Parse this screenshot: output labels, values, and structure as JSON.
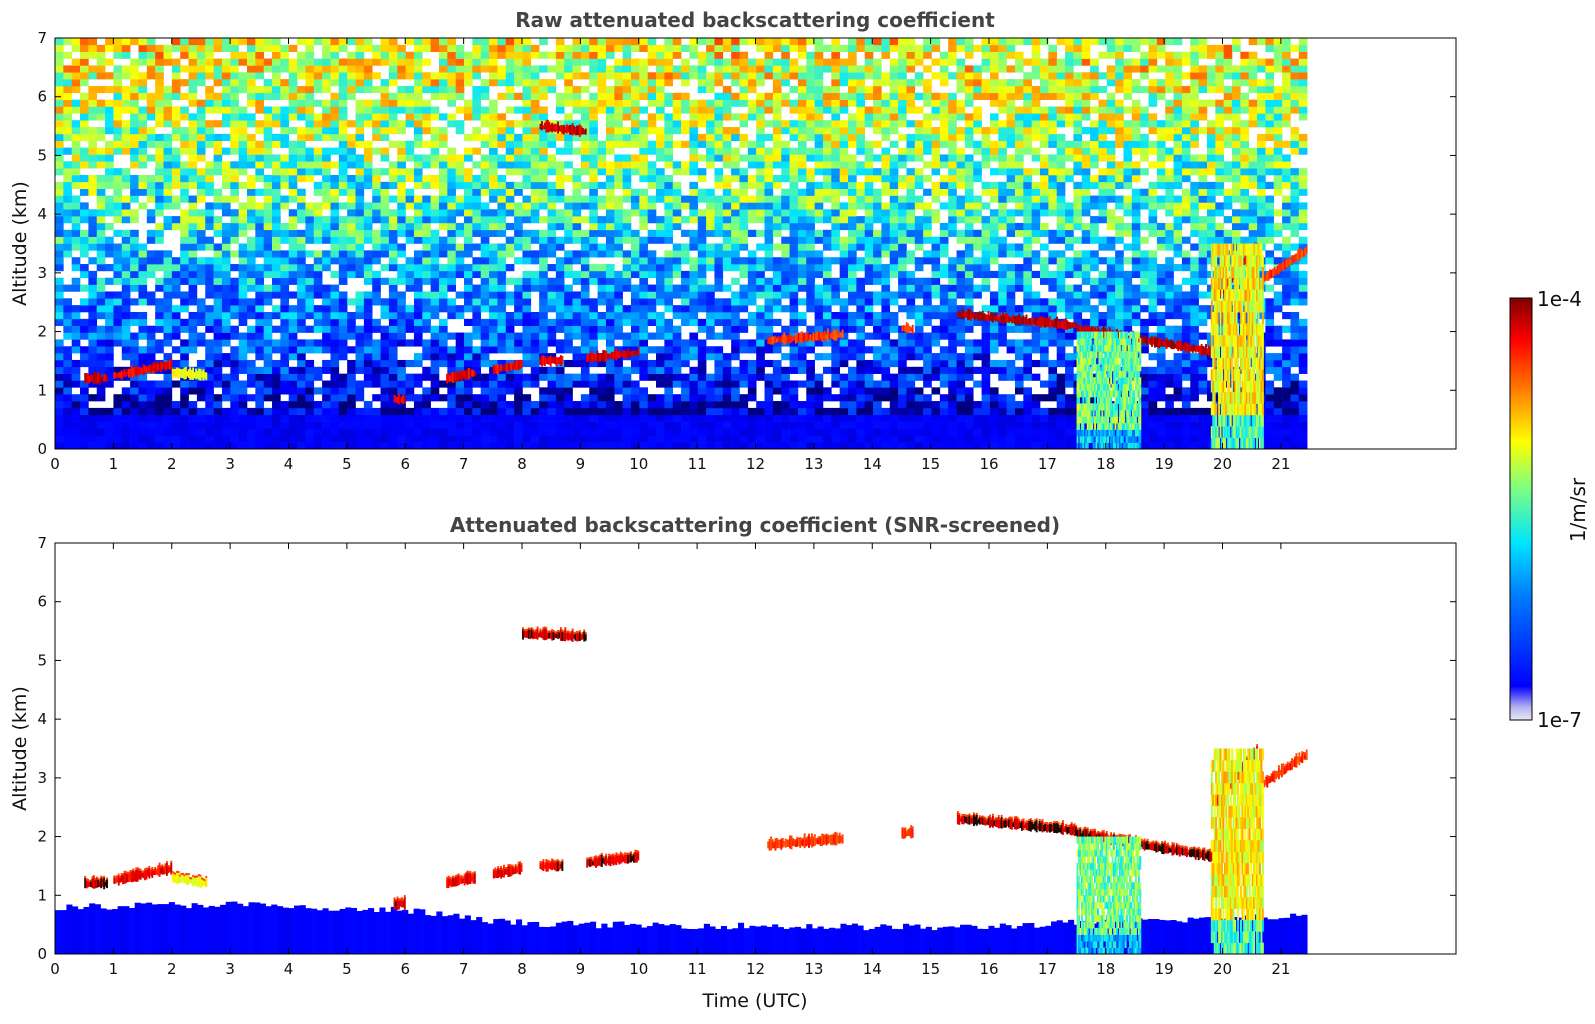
{
  "chart_data": [
    {
      "type": "heatmap",
      "title": "Raw attenuated backscattering coefficient",
      "xlabel": "",
      "ylabel": "Altitude (km)",
      "xlim": [
        0,
        24
      ],
      "ylim": [
        0,
        7
      ],
      "x_ticks": [
        "0",
        "1",
        "2",
        "3",
        "4",
        "5",
        "6",
        "7",
        "8",
        "9",
        "10",
        "11",
        "12",
        "13",
        "14",
        "15",
        "16",
        "17",
        "18",
        "19",
        "20",
        "21"
      ],
      "y_ticks": [
        "0",
        "1",
        "2",
        "3",
        "4",
        "5",
        "6",
        "7"
      ],
      "data_end_time": 21.45,
      "noise_profile": [
        {
          "z": 0.0,
          "v": 0.02
        },
        {
          "z": 0.6,
          "v": 0.05
        },
        {
          "z": 1.2,
          "v": 0.18
        },
        {
          "z": 2.5,
          "v": 0.32
        },
        {
          "z": 4.0,
          "v": 0.48
        },
        {
          "z": 5.5,
          "v": 0.6
        },
        {
          "z": 7.0,
          "v": 0.68
        }
      ],
      "features": [
        {
          "kind": "cloud",
          "t": [
            0.5,
            0.9
          ],
          "z": [
            1.2,
            1.2
          ],
          "v": 0.97
        },
        {
          "kind": "cloud",
          "t": [
            1.0,
            2.0
          ],
          "z": [
            1.25,
            1.45
          ],
          "v": 0.95
        },
        {
          "kind": "cloud",
          "t": [
            2.0,
            2.6
          ],
          "z": [
            1.3,
            1.25
          ],
          "v": 0.7
        },
        {
          "kind": "cloud",
          "t": [
            5.8,
            6.0
          ],
          "z": [
            0.85,
            0.85
          ],
          "v": 0.96
        },
        {
          "kind": "cloud",
          "t": [
            6.7,
            7.2
          ],
          "z": [
            1.2,
            1.3
          ],
          "v": 0.95
        },
        {
          "kind": "cloud",
          "t": [
            7.5,
            8.0
          ],
          "z": [
            1.35,
            1.45
          ],
          "v": 0.95
        },
        {
          "kind": "cloud",
          "t": [
            8.3,
            8.7
          ],
          "z": [
            1.5,
            1.5
          ],
          "v": 0.96
        },
        {
          "kind": "cloud",
          "t": [
            8.3,
            9.1
          ],
          "z": [
            5.5,
            5.4
          ],
          "v": 0.98
        },
        {
          "kind": "cloud",
          "t": [
            9.1,
            10.0
          ],
          "z": [
            1.55,
            1.65
          ],
          "v": 0.97
        },
        {
          "kind": "cloud",
          "t": [
            12.2,
            13.5
          ],
          "z": [
            1.85,
            1.95
          ],
          "v": 0.9
        },
        {
          "kind": "cloud",
          "t": [
            14.5,
            14.7
          ],
          "z": [
            2.05,
            2.05
          ],
          "v": 0.9
        },
        {
          "kind": "cloud",
          "t": [
            15.45,
            17.5
          ],
          "z": [
            2.3,
            2.1
          ],
          "v": 0.99
        },
        {
          "kind": "cloud",
          "t": [
            17.5,
            19.85
          ],
          "z": [
            2.05,
            1.65
          ],
          "v": 0.99
        },
        {
          "kind": "cloud",
          "t": [
            19.9,
            20.6
          ],
          "z": [
            2.6,
            3.5
          ],
          "v": 0.97
        },
        {
          "kind": "cloud",
          "t": [
            20.7,
            21.45
          ],
          "z": [
            2.9,
            3.4
          ],
          "v": 0.9
        },
        {
          "kind": "aerosol",
          "t": [
            17.5,
            18.6
          ],
          "z": [
            0.0,
            2.0
          ],
          "v": 0.55
        },
        {
          "kind": "aerosol",
          "t": [
            19.8,
            20.7
          ],
          "z": [
            0.0,
            3.5
          ],
          "v": 0.68
        }
      ]
    },
    {
      "type": "heatmap",
      "title": "Attenuated backscattering coefficient (SNR-screened)",
      "xlabel": "Time (UTC)",
      "ylabel": "Altitude (km)",
      "xlim": [
        0,
        24
      ],
      "ylim": [
        0,
        7
      ],
      "x_ticks": [
        "0",
        "1",
        "2",
        "3",
        "4",
        "5",
        "6",
        "7",
        "8",
        "9",
        "10",
        "11",
        "12",
        "13",
        "14",
        "15",
        "16",
        "17",
        "18",
        "19",
        "20",
        "21"
      ],
      "y_ticks": [
        "0",
        "1",
        "2",
        "3",
        "4",
        "5",
        "6",
        "7"
      ],
      "data_end_time": 21.45,
      "boundary_layer_top": [
        {
          "t": 0.0,
          "z": 0.8
        },
        {
          "t": 3.0,
          "z": 0.85
        },
        {
          "t": 5.0,
          "z": 0.75
        },
        {
          "t": 6.0,
          "z": 0.75
        },
        {
          "t": 7.5,
          "z": 0.55
        },
        {
          "t": 9.0,
          "z": 0.5
        },
        {
          "t": 15.5,
          "z": 0.45
        },
        {
          "t": 18.0,
          "z": 0.55
        },
        {
          "t": 21.45,
          "z": 0.65
        }
      ],
      "features": [
        {
          "kind": "cloud",
          "t": [
            0.5,
            0.9
          ],
          "z": [
            1.2,
            1.2
          ],
          "v": 0.97
        },
        {
          "kind": "cloud",
          "t": [
            1.0,
            2.0
          ],
          "z": [
            1.25,
            1.45
          ],
          "v": 0.95
        },
        {
          "kind": "cloud",
          "t": [
            2.0,
            2.6
          ],
          "z": [
            1.3,
            1.2
          ],
          "v": 0.7
        },
        {
          "kind": "cloud",
          "t": [
            5.8,
            6.0
          ],
          "z": [
            0.85,
            0.85
          ],
          "v": 0.96
        },
        {
          "kind": "cloud",
          "t": [
            6.7,
            7.2
          ],
          "z": [
            1.2,
            1.3
          ],
          "v": 0.95
        },
        {
          "kind": "cloud",
          "t": [
            7.5,
            8.0
          ],
          "z": [
            1.35,
            1.45
          ],
          "v": 0.95
        },
        {
          "kind": "cloud",
          "t": [
            8.3,
            8.7
          ],
          "z": [
            1.5,
            1.5
          ],
          "v": 0.96
        },
        {
          "kind": "cloud",
          "t": [
            8.0,
            9.1
          ],
          "z": [
            5.45,
            5.4
          ],
          "v": 0.98
        },
        {
          "kind": "cloud",
          "t": [
            9.1,
            10.0
          ],
          "z": [
            1.55,
            1.65
          ],
          "v": 0.97
        },
        {
          "kind": "cloud",
          "t": [
            12.2,
            13.5
          ],
          "z": [
            1.85,
            1.95
          ],
          "v": 0.9
        },
        {
          "kind": "cloud",
          "t": [
            14.5,
            14.7
          ],
          "z": [
            2.05,
            2.05
          ],
          "v": 0.9
        },
        {
          "kind": "cloud",
          "t": [
            15.45,
            17.5
          ],
          "z": [
            2.3,
            2.1
          ],
          "v": 0.99
        },
        {
          "kind": "cloud",
          "t": [
            17.5,
            19.85
          ],
          "z": [
            2.05,
            1.65
          ],
          "v": 0.99
        },
        {
          "kind": "cloud",
          "t": [
            19.9,
            20.6
          ],
          "z": [
            2.6,
            3.5
          ],
          "v": 0.97
        },
        {
          "kind": "cloud",
          "t": [
            20.7,
            21.45
          ],
          "z": [
            2.9,
            3.4
          ],
          "v": 0.9
        },
        {
          "kind": "aerosol",
          "t": [
            17.5,
            18.6
          ],
          "z": [
            0.0,
            2.0
          ],
          "v": 0.55
        },
        {
          "kind": "aerosol",
          "t": [
            19.8,
            20.7
          ],
          "z": [
            0.0,
            3.5
          ],
          "v": 0.68
        }
      ]
    }
  ],
  "colorbar": {
    "label": "1/m/sr",
    "max_label": "1e-4",
    "min_label": "1e-7",
    "colormap": "jet",
    "colors": [
      "#00007f",
      "#0000ff",
      "#007fff",
      "#00ffff",
      "#7fff7f",
      "#ffff00",
      "#ff7f00",
      "#ff0000",
      "#7f0000"
    ]
  }
}
